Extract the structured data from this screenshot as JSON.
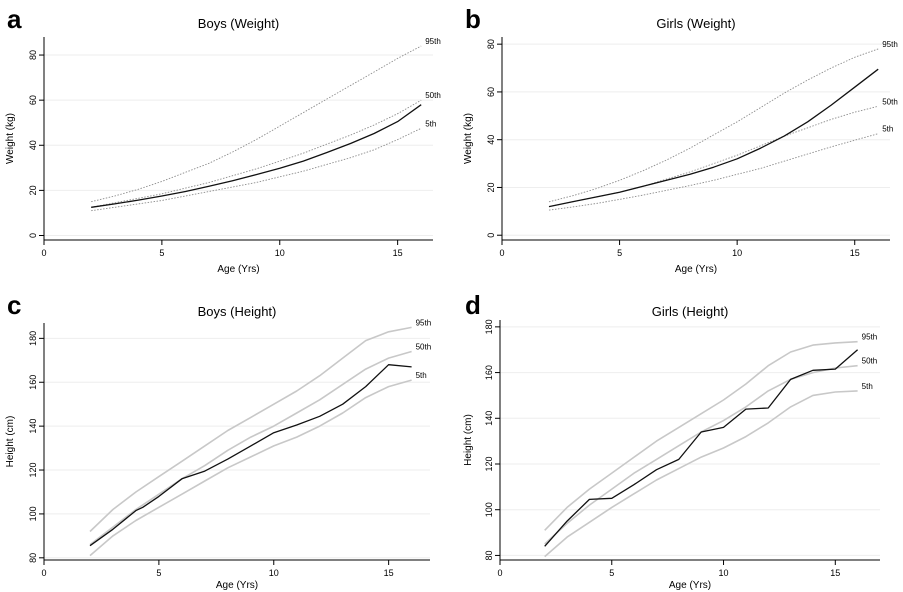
{
  "panel_letters": [
    "a",
    "b",
    "c",
    "d"
  ],
  "chart_data": [
    {
      "type": "line",
      "title": "Boys (Weight)",
      "xlabel": "Age (Yrs)",
      "ylabel": "Weight (kg)",
      "xlim": [
        0,
        16.5
      ],
      "ylim": [
        -2,
        88
      ],
      "xticks": [
        0,
        5,
        10,
        15
      ],
      "yticks": [
        0,
        20,
        40,
        60,
        80
      ],
      "grid": true,
      "series": [
        {
          "name": "95th",
          "style": "dotted",
          "color": "#8c8c8c",
          "x": [
            2,
            3,
            4,
            5,
            6,
            7,
            8,
            9,
            10,
            11,
            12,
            13,
            14,
            15,
            16
          ],
          "y": [
            15,
            17.5,
            20.5,
            24,
            28,
            32,
            37,
            42.5,
            48.5,
            54.5,
            60.5,
            66.5,
            72.5,
            78.5,
            84
          ]
        },
        {
          "name": "50th",
          "style": "dotted",
          "color": "#8c8c8c",
          "x": [
            2,
            3,
            4,
            5,
            6,
            7,
            8,
            9,
            10,
            11,
            12,
            13,
            14,
            15,
            16
          ],
          "y": [
            12.5,
            14.5,
            16.5,
            18.5,
            21,
            23.5,
            26.5,
            29.5,
            33,
            36.5,
            40.5,
            44.5,
            49,
            54,
            60
          ]
        },
        {
          "name": "5th",
          "style": "dotted",
          "color": "#8c8c8c",
          "x": [
            2,
            3,
            4,
            5,
            6,
            7,
            8,
            9,
            10,
            11,
            12,
            13,
            14,
            15,
            16
          ],
          "y": [
            11,
            12.5,
            14,
            15.5,
            17.5,
            19.5,
            21.5,
            23.5,
            26,
            28.5,
            31.5,
            34.5,
            38,
            42.5,
            47.5
          ]
        },
        {
          "name": "",
          "style": "solid",
          "color": "#111111",
          "x": [
            2,
            3,
            4,
            5,
            6,
            7,
            8,
            9,
            10,
            11,
            12,
            13,
            14,
            15,
            16
          ],
          "y": [
            12.5,
            14,
            15.7,
            17.5,
            19.5,
            21.8,
            24.3,
            27,
            29.8,
            33,
            36.8,
            40.8,
            45.2,
            50.5,
            58
          ]
        }
      ]
    },
    {
      "type": "line",
      "title": "Girls (Weight)",
      "xlabel": "Age (Yrs)",
      "ylabel": "Weight (kg)",
      "xlim": [
        0,
        16.5
      ],
      "ylim": [
        -2,
        83
      ],
      "xticks": [
        0,
        5,
        10,
        15
      ],
      "yticks": [
        0,
        20,
        40,
        60,
        80
      ],
      "grid": true,
      "series": [
        {
          "name": "95th",
          "style": "dotted",
          "color": "#8c8c8c",
          "x": [
            2,
            3,
            4,
            5,
            6,
            7,
            8,
            9,
            10,
            11,
            12,
            13,
            14,
            15,
            16
          ],
          "y": [
            14,
            16.5,
            19.5,
            23,
            27,
            31.5,
            36.5,
            42,
            47.5,
            53.5,
            59.5,
            65,
            70,
            74.5,
            78
          ]
        },
        {
          "name": "50th",
          "style": "dotted",
          "color": "#8c8c8c",
          "x": [
            2,
            3,
            4,
            5,
            6,
            7,
            8,
            9,
            10,
            11,
            12,
            13,
            14,
            15,
            16
          ],
          "y": [
            12,
            14,
            16,
            18,
            20.5,
            23.5,
            26.5,
            30,
            33.5,
            37.5,
            41.5,
            45,
            48.5,
            51.5,
            54
          ]
        },
        {
          "name": "5th",
          "style": "dotted",
          "color": "#8c8c8c",
          "x": [
            2,
            3,
            4,
            5,
            6,
            7,
            8,
            9,
            10,
            11,
            12,
            13,
            14,
            15,
            16
          ],
          "y": [
            10.5,
            11.8,
            13.3,
            15,
            16.8,
            18.8,
            20.8,
            23,
            25.5,
            28,
            31,
            34,
            37,
            39.8,
            42.5
          ]
        },
        {
          "name": "",
          "style": "solid",
          "color": "#111111",
          "x": [
            2,
            3,
            4,
            5,
            6,
            7,
            8,
            9,
            10,
            11,
            12,
            13,
            14,
            15,
            16
          ],
          "y": [
            12,
            14,
            16,
            18,
            20.5,
            23,
            25.5,
            28.5,
            32,
            36.5,
            41.5,
            47.5,
            54.5,
            62,
            69.5
          ]
        }
      ]
    },
    {
      "type": "line",
      "title": "Boys (Height)",
      "xlabel": "Age (Yrs)",
      "ylabel": "Height (cm)",
      "xlim": [
        0,
        16.8
      ],
      "ylim": [
        79,
        187
      ],
      "xticks": [
        0,
        5,
        10,
        15
      ],
      "yticks": [
        80,
        100,
        120,
        140,
        160,
        180
      ],
      "grid": true,
      "series": [
        {
          "name": "95th",
          "style": "solid",
          "color": "#c8c8c8",
          "x": [
            2,
            3,
            4,
            5,
            6,
            7,
            8,
            9,
            10,
            11,
            12,
            13,
            14,
            15,
            16
          ],
          "y": [
            92,
            102,
            110,
            117,
            124,
            131,
            138,
            144,
            150,
            156,
            163,
            171,
            179,
            183,
            185
          ]
        },
        {
          "name": "50th",
          "style": "solid",
          "color": "#c8c8c8",
          "x": [
            2,
            3,
            4,
            5,
            6,
            7,
            8,
            9,
            10,
            11,
            12,
            13,
            14,
            15,
            16
          ],
          "y": [
            86,
            94,
            102,
            109,
            116,
            122,
            129,
            135,
            140,
            146,
            152,
            159,
            166,
            171,
            174
          ]
        },
        {
          "name": "5th",
          "style": "solid",
          "color": "#c8c8c8",
          "x": [
            2,
            3,
            4,
            5,
            6,
            7,
            8,
            9,
            10,
            11,
            12,
            13,
            14,
            15,
            16
          ],
          "y": [
            81,
            90,
            97,
            103,
            109,
            115,
            121,
            126,
            131,
            135,
            140,
            146,
            153,
            158,
            161
          ]
        },
        {
          "name": "",
          "style": "solid",
          "color": "#111111",
          "x": [
            2,
            3,
            4,
            4.3,
            5,
            6,
            7,
            8,
            9,
            10,
            11,
            12,
            13,
            14,
            15,
            16
          ],
          "y": [
            85.5,
            93,
            101.5,
            103,
            108,
            116,
            119.5,
            125,
            131,
            137,
            140.5,
            144.5,
            150,
            158,
            168,
            167
          ]
        }
      ]
    },
    {
      "type": "line",
      "title": "Girls (Height)",
      "xlabel": "Age (Yrs)",
      "ylabel": "Height (cm)",
      "xlim": [
        0,
        17
      ],
      "ylim": [
        78,
        183
      ],
      "xticks": [
        0,
        5,
        10,
        15
      ],
      "yticks": [
        80,
        100,
        120,
        140,
        160,
        180
      ],
      "grid": true,
      "series": [
        {
          "name": "95th",
          "style": "solid",
          "color": "#c8c8c8",
          "x": [
            2,
            3,
            4,
            5,
            6,
            7,
            8,
            9,
            10,
            11,
            12,
            13,
            14,
            15,
            16
          ],
          "y": [
            91,
            101,
            109,
            116,
            123,
            130,
            136,
            142,
            148,
            155,
            163,
            169,
            172,
            173,
            173.5
          ]
        },
        {
          "name": "50th",
          "style": "solid",
          "color": "#c8c8c8",
          "x": [
            2,
            3,
            4,
            5,
            6,
            7,
            8,
            9,
            10,
            11,
            12,
            13,
            14,
            15,
            16
          ],
          "y": [
            85,
            94,
            102,
            109,
            116,
            122,
            128,
            134,
            139,
            145,
            152,
            157,
            160,
            162,
            163
          ]
        },
        {
          "name": "5th",
          "style": "solid",
          "color": "#c8c8c8",
          "x": [
            2,
            3,
            4,
            5,
            6,
            7,
            8,
            9,
            10,
            11,
            12,
            13,
            14,
            15,
            16
          ],
          "y": [
            79.5,
            88,
            94.5,
            101,
            107,
            113,
            118,
            123,
            127,
            132,
            138,
            145,
            150,
            151.5,
            152
          ]
        },
        {
          "name": "",
          "style": "solid",
          "color": "#111111",
          "x": [
            2,
            3,
            4,
            5,
            6,
            7,
            8,
            9,
            10,
            11,
            12,
            13,
            14,
            15,
            16
          ],
          "y": [
            84,
            95,
            104.5,
            105,
            111,
            117.5,
            122,
            134,
            136,
            144,
            144.5,
            157,
            161,
            161.5,
            170
          ]
        }
      ]
    }
  ]
}
